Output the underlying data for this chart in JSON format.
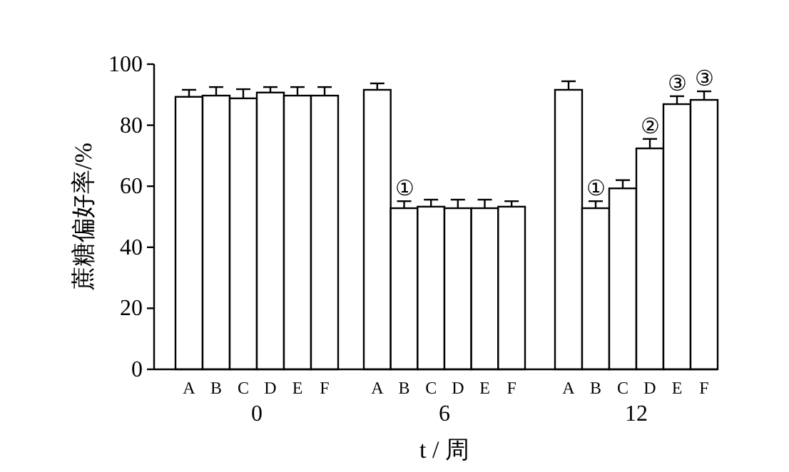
{
  "chart_data": [
    {
      "type": "bar",
      "categories": [
        "A",
        "B",
        "C",
        "D",
        "E",
        "F"
      ],
      "xlabel": "0",
      "ylabel": "蔗糖偏好率/%",
      "ylim": [
        0,
        100
      ],
      "yticks": [
        0,
        20,
        40,
        60,
        80,
        100
      ],
      "color": "#ffffff",
      "values": [
        89.3,
        89.7,
        88.8,
        90.7,
        89.7,
        89.7
      ],
      "errors": [
        2.3,
        2.8,
        3.0,
        1.8,
        2.8,
        2.8
      ]
    },
    {
      "type": "bar",
      "categories": [
        "A",
        "B",
        "C",
        "D",
        "E",
        "F"
      ],
      "xlabel": "6",
      "ylim": [
        0,
        100
      ],
      "tick_labels": "x",
      "color": "#ffffff",
      "values": [
        91.6,
        52.8,
        53.3,
        52.8,
        52.8,
        53.3
      ],
      "errors": [
        2.1,
        2.3,
        2.3,
        2.8,
        2.8,
        1.8
      ],
      "annotations": [
        {
          "text": "①",
          "x": "B",
          "y": 55.1
        },
        "t / 周"
      ]
    },
    {
      "type": "bar",
      "categories": [
        "A",
        "B",
        "C",
        "D",
        "E",
        "F"
      ],
      "xlabel": "12",
      "ylim": [
        0,
        100
      ],
      "tick_labels": "x",
      "color": "#ffffff",
      "values": [
        91.6,
        52.8,
        59.3,
        72.4,
        86.9,
        88.3
      ],
      "errors": [
        2.8,
        2.3,
        2.7,
        3.1,
        2.6,
        2.8
      ],
      "annotations": [
        {
          "text": "①",
          "x": "B",
          "y": 55.1
        },
        {
          "text": "②",
          "x": "D",
          "y": 75.5
        },
        {
          "text": "③",
          "x": "E",
          "y": 89.5
        },
        {
          "text": "③",
          "x": "F",
          "y": 91.1
        }
      ]
    }
  ]
}
